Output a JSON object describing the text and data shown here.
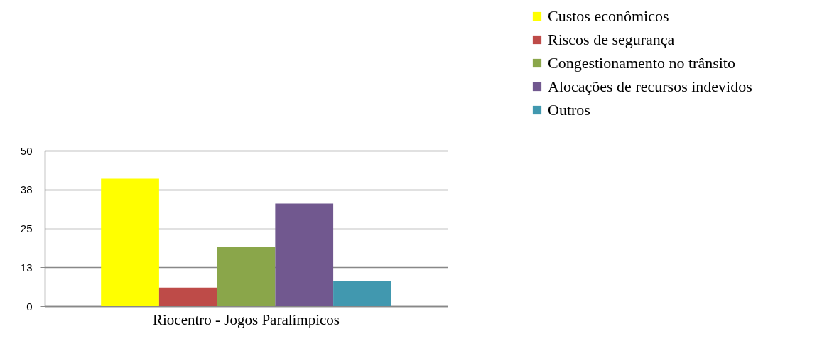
{
  "chart_data": {
    "type": "bar",
    "categories": [
      "Riocentro - Jogos Paralímpicos"
    ],
    "series": [
      {
        "name": "Custos econômicos",
        "color": "#ffff00",
        "values": [
          41
        ]
      },
      {
        "name": "Riscos de segurança",
        "color": "#be4b48",
        "values": [
          6
        ]
      },
      {
        "name": "Congestionamento no trânsito",
        "color": "#8aa64a",
        "values": [
          19
        ]
      },
      {
        "name": "Alocações de recursos indevidos",
        "color": "#71588f",
        "values": [
          33
        ]
      },
      {
        "name": "Outros",
        "color": "#4198af",
        "values": [
          8
        ]
      }
    ],
    "ylim": [
      0,
      50
    ],
    "yticks": [
      0,
      {
        "value": 12.5,
        "label": "13"
      },
      25,
      {
        "value": 37.5,
        "label": "38"
      },
      50
    ],
    "grid": "y",
    "legend": "top right"
  }
}
